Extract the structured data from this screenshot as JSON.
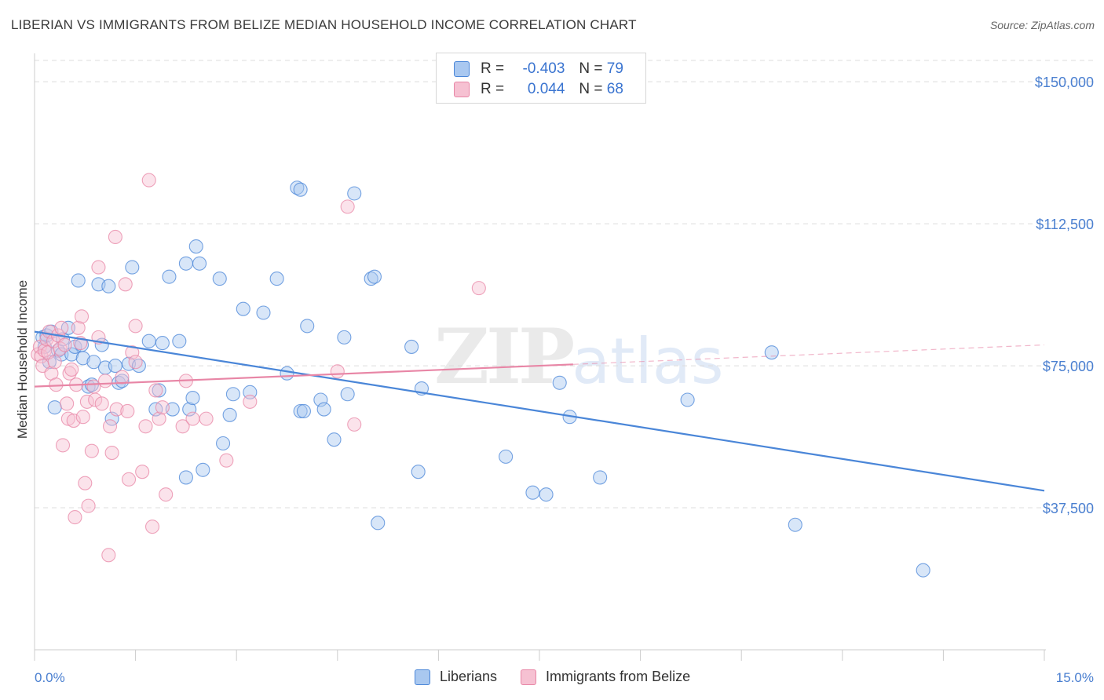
{
  "title": "LIBERIAN VS IMMIGRANTS FROM BELIZE MEDIAN HOUSEHOLD INCOME CORRELATION CHART",
  "source": "Source: ZipAtlas.com",
  "watermark": {
    "main": "ZIP",
    "sub": "atlas"
  },
  "legend": {
    "rows": [
      {
        "r_label": "R =",
        "r_value": "-0.403",
        "n_label": "N =",
        "n_value": "79",
        "color": "#4a86d8",
        "fill": "#a9c8f0"
      },
      {
        "r_label": "R =",
        "r_value": "0.044",
        "n_label": "N =",
        "n_value": "68",
        "color": "#e886a6",
        "fill": "#f6c1d2"
      }
    ]
  },
  "bottom_legend": [
    "Liberians",
    "Immigrants from Belize"
  ],
  "chart_data": {
    "type": "scatter",
    "title": "LIBERIAN VS IMMIGRANTS FROM BELIZE MEDIAN HOUSEHOLD INCOME CORRELATION CHART",
    "xlabel": "",
    "ylabel": "Median Household Income",
    "xlim": [
      0,
      15
    ],
    "ylim": [
      0,
      155000
    ],
    "x_tick_labels": [
      "0.0%",
      "15.0%"
    ],
    "y_ticks": [
      37500,
      75000,
      112500,
      150000
    ],
    "y_tick_labels": [
      "$37,500",
      "$75,000",
      "$112,500",
      "$150,000"
    ],
    "grid": true,
    "legend_placement": "top-center",
    "series": [
      {
        "name": "Liberians",
        "color": "#4a86d8",
        "trend": {
          "x": [
            0.0,
            15.0
          ],
          "y": [
            84000,
            42000
          ],
          "solid_until": 15.0
        },
        "points": [
          [
            0.12,
            82500
          ],
          [
            0.15,
            80000
          ],
          [
            0.18,
            83000
          ],
          [
            0.22,
            76000
          ],
          [
            0.25,
            84000
          ],
          [
            0.3,
            64000
          ],
          [
            0.35,
            79000
          ],
          [
            0.4,
            78000
          ],
          [
            0.42,
            82000
          ],
          [
            0.5,
            85000
          ],
          [
            0.55,
            78000
          ],
          [
            0.6,
            80000
          ],
          [
            0.65,
            97500
          ],
          [
            0.7,
            80500
          ],
          [
            0.72,
            77000
          ],
          [
            0.8,
            69500
          ],
          [
            0.85,
            70000
          ],
          [
            0.88,
            76000
          ],
          [
            0.95,
            96500
          ],
          [
            1.0,
            80500
          ],
          [
            1.05,
            74500
          ],
          [
            1.1,
            96000
          ],
          [
            1.15,
            61000
          ],
          [
            1.2,
            75000
          ],
          [
            1.25,
            70500
          ],
          [
            1.3,
            71000
          ],
          [
            1.4,
            75500
          ],
          [
            1.45,
            101000
          ],
          [
            1.55,
            75000
          ],
          [
            1.7,
            81500
          ],
          [
            1.8,
            63500
          ],
          [
            1.85,
            68500
          ],
          [
            1.9,
            81000
          ],
          [
            2.0,
            98500
          ],
          [
            2.05,
            63500
          ],
          [
            2.15,
            81500
          ],
          [
            2.25,
            45500
          ],
          [
            2.25,
            102000
          ],
          [
            2.3,
            63500
          ],
          [
            2.35,
            66500
          ],
          [
            2.4,
            106500
          ],
          [
            2.45,
            102000
          ],
          [
            2.5,
            47500
          ],
          [
            2.75,
            98000
          ],
          [
            2.8,
            54500
          ],
          [
            2.9,
            62000
          ],
          [
            2.95,
            67500
          ],
          [
            3.1,
            90000
          ],
          [
            3.2,
            68000
          ],
          [
            3.4,
            89000
          ],
          [
            3.6,
            98000
          ],
          [
            3.75,
            73000
          ],
          [
            3.9,
            122000
          ],
          [
            3.95,
            121500
          ],
          [
            3.95,
            63000
          ],
          [
            4.0,
            63000
          ],
          [
            4.05,
            85500
          ],
          [
            4.25,
            66000
          ],
          [
            4.3,
            63500
          ],
          [
            4.45,
            55500
          ],
          [
            4.6,
            82500
          ],
          [
            4.65,
            67500
          ],
          [
            4.75,
            120500
          ],
          [
            5.0,
            98000
          ],
          [
            5.05,
            98500
          ],
          [
            5.1,
            33500
          ],
          [
            5.6,
            80000
          ],
          [
            5.7,
            47000
          ],
          [
            5.75,
            69000
          ],
          [
            7.0,
            51000
          ],
          [
            7.4,
            41500
          ],
          [
            7.6,
            41000
          ],
          [
            7.8,
            70500
          ],
          [
            7.95,
            61500
          ],
          [
            8.4,
            45500
          ],
          [
            9.7,
            66000
          ],
          [
            10.95,
            78500
          ],
          [
            11.3,
            33000
          ],
          [
            13.2,
            21000
          ]
        ]
      },
      {
        "name": "Immigrants from Belize",
        "color": "#e886a6",
        "trend": {
          "x": [
            0.0,
            15.0
          ],
          "y": [
            69500,
            80500
          ],
          "solid_until": 8.0
        },
        "points": [
          [
            0.05,
            78000
          ],
          [
            0.08,
            80000
          ],
          [
            0.1,
            77500
          ],
          [
            0.12,
            75000
          ],
          [
            0.15,
            79000
          ],
          [
            0.18,
            82000
          ],
          [
            0.2,
            78500
          ],
          [
            0.22,
            84000
          ],
          [
            0.25,
            73000
          ],
          [
            0.28,
            81500
          ],
          [
            0.3,
            76000
          ],
          [
            0.32,
            70000
          ],
          [
            0.35,
            83000
          ],
          [
            0.38,
            79500
          ],
          [
            0.4,
            85000
          ],
          [
            0.42,
            54000
          ],
          [
            0.45,
            80500
          ],
          [
            0.48,
            65000
          ],
          [
            0.5,
            61000
          ],
          [
            0.52,
            73000
          ],
          [
            0.55,
            74000
          ],
          [
            0.58,
            60500
          ],
          [
            0.6,
            35000
          ],
          [
            0.62,
            70000
          ],
          [
            0.65,
            85000
          ],
          [
            0.68,
            81000
          ],
          [
            0.7,
            88000
          ],
          [
            0.72,
            61500
          ],
          [
            0.75,
            44000
          ],
          [
            0.78,
            65500
          ],
          [
            0.8,
            38000
          ],
          [
            0.85,
            52500
          ],
          [
            0.88,
            69500
          ],
          [
            0.9,
            66000
          ],
          [
            0.95,
            82500
          ],
          [
            0.95,
            101000
          ],
          [
            1.0,
            65000
          ],
          [
            1.05,
            71000
          ],
          [
            1.1,
            25000
          ],
          [
            1.12,
            59000
          ],
          [
            1.15,
            52000
          ],
          [
            1.2,
            109000
          ],
          [
            1.22,
            63500
          ],
          [
            1.3,
            72000
          ],
          [
            1.35,
            96500
          ],
          [
            1.38,
            63000
          ],
          [
            1.4,
            45000
          ],
          [
            1.45,
            78500
          ],
          [
            1.5,
            76000
          ],
          [
            1.5,
            85500
          ],
          [
            1.6,
            47000
          ],
          [
            1.65,
            59000
          ],
          [
            1.7,
            124000
          ],
          [
            1.75,
            32500
          ],
          [
            1.8,
            68500
          ],
          [
            1.85,
            61000
          ],
          [
            1.9,
            64000
          ],
          [
            1.95,
            41000
          ],
          [
            2.2,
            59000
          ],
          [
            2.25,
            71000
          ],
          [
            2.35,
            61000
          ],
          [
            2.55,
            61000
          ],
          [
            2.85,
            50000
          ],
          [
            3.2,
            65500
          ],
          [
            4.5,
            73500
          ],
          [
            4.75,
            59500
          ],
          [
            4.65,
            117000
          ],
          [
            6.6,
            95500
          ]
        ]
      }
    ]
  }
}
